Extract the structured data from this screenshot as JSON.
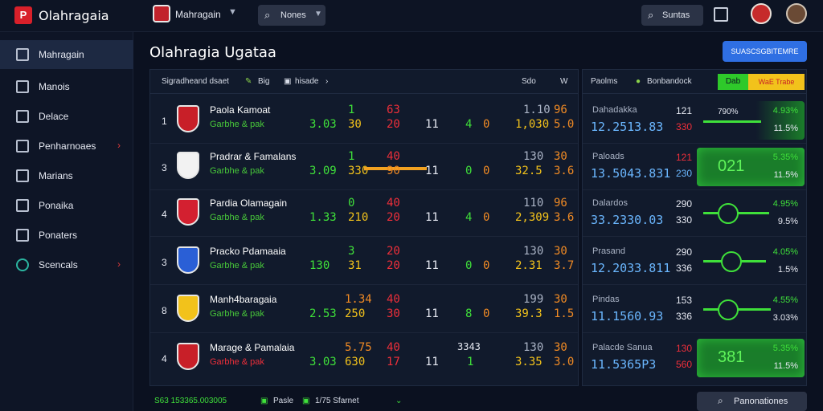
{
  "topbar": {
    "logo_glyph": "P",
    "app_title": "Olahragaia",
    "workspace": "Mahragain",
    "search": "Nones",
    "search_right": "Suntas"
  },
  "sidebar": {
    "items": [
      {
        "label": "Mahragain",
        "active": true,
        "chevron": false
      },
      {
        "label": "Manois",
        "active": false,
        "chevron": false
      },
      {
        "label": "Delace",
        "active": false,
        "chevron": false
      },
      {
        "label": "Penharnoaes",
        "active": false,
        "chevron": true
      },
      {
        "label": "Marians",
        "active": false,
        "chevron": false
      },
      {
        "label": "Ponaika",
        "active": false,
        "chevron": false
      },
      {
        "label": "Ponaters",
        "active": false,
        "chevron": false
      },
      {
        "label": "Scencals",
        "active": false,
        "chevron": true
      }
    ]
  },
  "main": {
    "title": "Olahragia Ugataa",
    "action_button": "SUASCSGBITEMRE"
  },
  "left_panel": {
    "header": {
      "col1": "Sigradheand dsaet",
      "col2": "Big",
      "col3": "hisade",
      "col4": "Sdo",
      "col5": "W"
    },
    "rows": [
      {
        "rank": "1",
        "crest_color": "#c81f28",
        "name": "Paola Kamoat",
        "sub": "Garbhe & pak",
        "a": "3.03",
        "b1": "1",
        "b2": "30",
        "c1": "63",
        "c2": "20",
        "d": "11",
        "e1": "4",
        "e2": "0",
        "f1": "1.10",
        "f2": "1,030",
        "g1": "96",
        "g2": "5.0"
      },
      {
        "rank": "3",
        "crest_color": "#f2f2f2",
        "name": "Pradrar & Famalans",
        "sub": "Garbhe & pak",
        "a": "3.09",
        "b1": "1",
        "b2": "330",
        "c1": "40",
        "c2": "90",
        "d": "11",
        "e1": "0",
        "e2": "0",
        "f1": "130",
        "f2": "32.5",
        "g1": "30",
        "g2": "3.6",
        "bar": true
      },
      {
        "rank": "4",
        "crest_color": "#d32030",
        "name": "Pardia Olamagain",
        "sub": "Garbhe & pak",
        "a": "1.33",
        "b1": "0",
        "b2": "210",
        "c1": "40",
        "c2": "20",
        "d": "11",
        "e1": "4",
        "e2": "0",
        "f1": "110",
        "f2": "2,309",
        "g1": "96",
        "g2": "3.6"
      },
      {
        "rank": "3",
        "crest_color": "#2a5fd6",
        "name": "Pracko Pdamaaia",
        "sub": "Garbhe & pak",
        "a": "130",
        "b1": "3",
        "b2": "31",
        "c1": "20",
        "c2": "20",
        "d": "11",
        "e1": "0",
        "e2": "0",
        "f1": "130",
        "f2": "2.31",
        "g1": "30",
        "g2": "3.7"
      },
      {
        "rank": "8",
        "crest_color": "#f2c21b",
        "name": "Manh4baragaia",
        "sub": "Garbhe & pak",
        "a": "2.53",
        "b1": "1.34",
        "b2": "250",
        "c1": "40",
        "c2": "30",
        "d": "11",
        "e1": "8",
        "e2": "0",
        "f1": "199",
        "f2": "39.3",
        "g1": "30",
        "g2": "1.5"
      },
      {
        "rank": "4",
        "crest_color": "#c81f28",
        "name": "Marage & Pamalaia",
        "sub": "Garbhe & pak",
        "a": "3.03",
        "b1": "5.75",
        "b2": "630",
        "c1": "40",
        "c2": "17",
        "d": "11",
        "e1": "3343",
        "e2": "1",
        "f1": "130",
        "f2": "3.35",
        "g1": "30",
        "g2": "3.0"
      }
    ]
  },
  "right_panel": {
    "header": {
      "col1": "Paolms",
      "col2": "Bonbandock",
      "chip_green": "Dab",
      "chip_yellow": "WaE Trabe"
    },
    "rows": [
      {
        "name": "Dahadakka",
        "value": "12.2513.83",
        "n1": "121",
        "n2": "330",
        "viz": "line",
        "big": "790%",
        "p1": "4.93%",
        "p2": "11.5%"
      },
      {
        "name": "Paloads",
        "value": "13.5043.831",
        "n1": "121",
        "n2": "230",
        "viz": "glow",
        "big": "021",
        "p1": "5.35%",
        "p2": "11.5%"
      },
      {
        "name": "Dalardos",
        "value": "33.2330.03",
        "n1": "290",
        "n2": "330",
        "viz": "ring",
        "big": "",
        "p1": "4.95%",
        "p2": "9.5%"
      },
      {
        "name": "Prasand",
        "value": "12.2033.811",
        "n1": "290",
        "n2": "336",
        "viz": "ring2",
        "big": "",
        "p1": "4.05%",
        "p2": "1.5%"
      },
      {
        "name": "Pindas",
        "value": "11.1560.93",
        "n1": "153",
        "n2": "336",
        "viz": "ring3",
        "big": "",
        "p1": "4.55%",
        "p2": "3.03%"
      },
      {
        "name": "Palacde Sanua",
        "value": "11.5365P3",
        "n1": "130",
        "n2": "560",
        "viz": "glow",
        "big": "381",
        "p1": "5.35%",
        "p2": "11.5%"
      }
    ]
  },
  "footer": {
    "left": "S63 153365.003005",
    "mid1": "Pasle",
    "mid2": "1/75 Sfarnet",
    "button": "Panonationes"
  },
  "colors": {
    "background": "#0b1120",
    "accent_blue": "#2f6fe3",
    "positive": "#3fe03a",
    "negative": "#ef2f3a"
  }
}
